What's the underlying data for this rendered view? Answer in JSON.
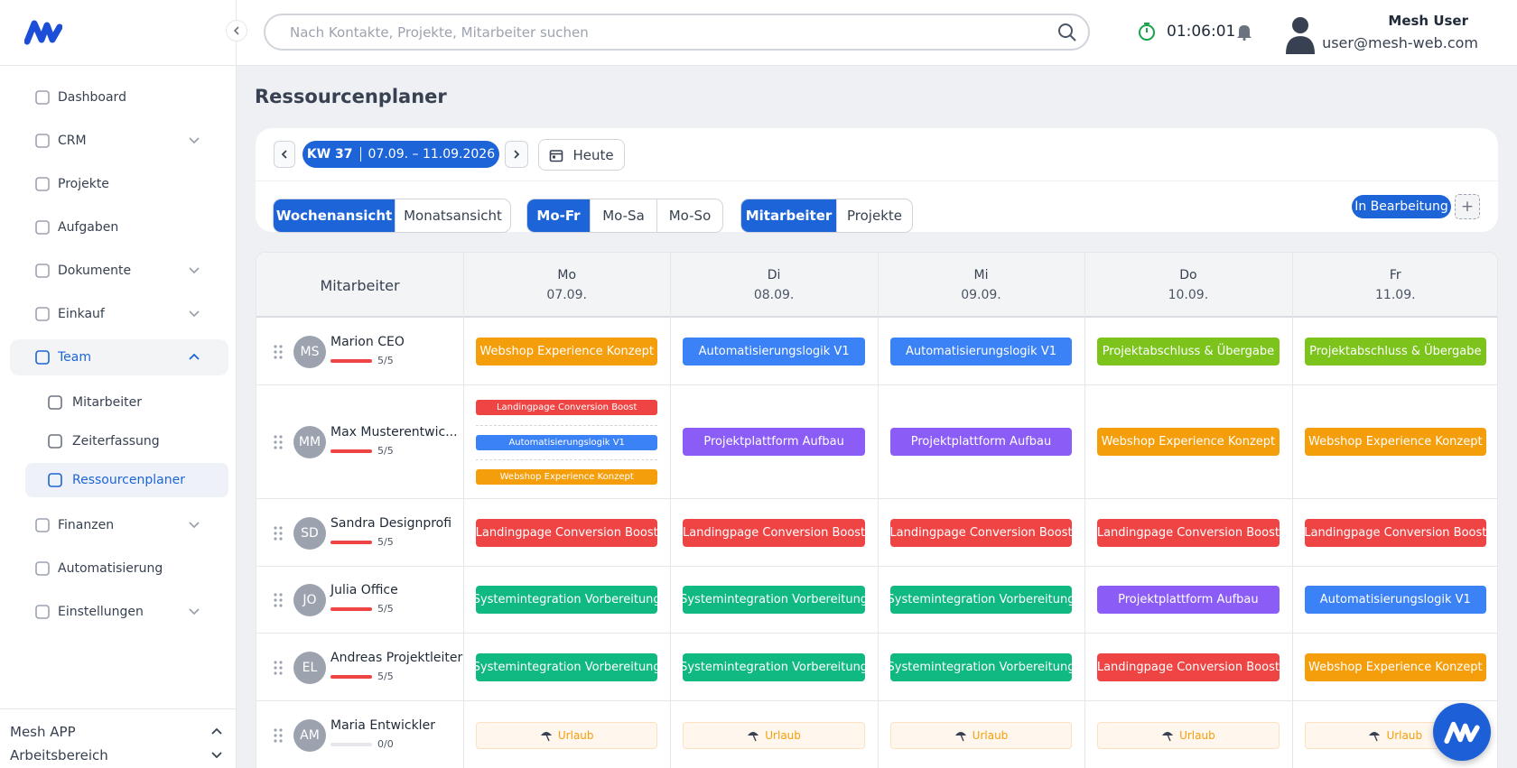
{
  "sidebar": {
    "items": [
      {
        "label": "Dashboard"
      },
      {
        "label": "CRM",
        "chevron": "down"
      },
      {
        "label": "Projekte"
      },
      {
        "label": "Aufgaben"
      },
      {
        "label": "Dokumente",
        "chevron": "down"
      },
      {
        "label": "Einkauf",
        "chevron": "down"
      },
      {
        "label": "Team",
        "chevron": "up",
        "open": true,
        "children": [
          {
            "label": "Mitarbeiter"
          },
          {
            "label": "Zeiterfassung"
          },
          {
            "label": "Ressourcenplaner",
            "active": true
          }
        ]
      },
      {
        "label": "Finanzen",
        "chevron": "down"
      },
      {
        "label": "Automatisierung"
      },
      {
        "label": "Einstellungen",
        "chevron": "down"
      }
    ],
    "footer": [
      {
        "label": "Mesh APP",
        "chevron": "up"
      },
      {
        "label": "Arbeitsbereich",
        "chevron": "down"
      }
    ]
  },
  "header": {
    "search_placeholder": "Nach Kontakte, Projekte, Mitarbeiter suchen",
    "timer": "01:06:01",
    "user_name": "Mesh User",
    "user_email": "user@mesh-web.com"
  },
  "page": {
    "title": "Ressourcenplaner",
    "week_label": "KW 37",
    "week_range": "07.09. – 11.09.2026",
    "today": "Heute",
    "toggles": [
      {
        "options": [
          "Wochenansicht",
          "Monatsansicht"
        ],
        "active": 0
      },
      {
        "options": [
          "Mo-Fr",
          "Mo-Sa",
          "Mo-So"
        ],
        "active": 0
      },
      {
        "options": [
          "Mitarbeiter",
          "Projekte"
        ],
        "active": 0
      }
    ],
    "status": "In Bearbeitung",
    "add": "+"
  },
  "table": {
    "corner": "Mitarbeiter",
    "days": [
      {
        "day": "Mo",
        "date": "07.09."
      },
      {
        "day": "Di",
        "date": "08.09."
      },
      {
        "day": "Mi",
        "date": "09.09."
      },
      {
        "day": "Do",
        "date": "10.09."
      },
      {
        "day": "Fr",
        "date": "11.09."
      }
    ],
    "rows": [
      {
        "initials": "MS",
        "name": "Marion CEO",
        "capacity": "5/5",
        "full": true,
        "cells": [
          [
            {
              "label": "Webshop Experience Konzept",
              "color": "#f59e0b"
            }
          ],
          [
            {
              "label": "Automatisierungslogik V1",
              "color": "#3b82f6"
            }
          ],
          [
            {
              "label": "Automatisierungslogik V1",
              "color": "#3b82f6"
            }
          ],
          [
            {
              "label": "Projektabschluss & Übergabe",
              "color": "#7cc41c"
            }
          ],
          [
            {
              "label": "Projektabschluss & Übergabe",
              "color": "#7cc41c"
            }
          ]
        ]
      },
      {
        "initials": "MM",
        "name": "Max Musterentwic...",
        "capacity": "5/5",
        "full": true,
        "cells": [
          [
            {
              "label": "Landingpage Conversion Boost",
              "color": "#ef4444"
            },
            {
              "label": "Automatisierungslogik V1",
              "color": "#3b82f6"
            },
            {
              "label": "Webshop Experience Konzept",
              "color": "#f59e0b"
            }
          ],
          [
            {
              "label": "Projektplattform Aufbau",
              "color": "#8b5cf6"
            }
          ],
          [
            {
              "label": "Projektplattform Aufbau",
              "color": "#8b5cf6"
            }
          ],
          [
            {
              "label": "Webshop Experience Konzept",
              "color": "#f59e0b"
            }
          ],
          [
            {
              "label": "Webshop Experience Konzept",
              "color": "#f59e0b"
            }
          ]
        ]
      },
      {
        "initials": "SD",
        "name": "Sandra Designprofi",
        "capacity": "5/5",
        "full": true,
        "cells": [
          [
            {
              "label": "Landingpage Conversion Boost",
              "color": "#ef4444"
            }
          ],
          [
            {
              "label": "Landingpage Conversion Boost",
              "color": "#ef4444"
            }
          ],
          [
            {
              "label": "Landingpage Conversion Boost",
              "color": "#ef4444"
            }
          ],
          [
            {
              "label": "Landingpage Conversion Boost",
              "color": "#ef4444"
            }
          ],
          [
            {
              "label": "Landingpage Conversion Boost",
              "color": "#ef4444"
            }
          ]
        ]
      },
      {
        "initials": "JO",
        "name": "Julia Office",
        "capacity": "5/5",
        "full": true,
        "cells": [
          [
            {
              "label": "Systemintegration Vorbereitung",
              "color": "#10b981"
            }
          ],
          [
            {
              "label": "Systemintegration Vorbereitung",
              "color": "#10b981"
            }
          ],
          [
            {
              "label": "Systemintegration Vorbereitung",
              "color": "#10b981"
            }
          ],
          [
            {
              "label": "Projektplattform Aufbau",
              "color": "#8b5cf6"
            }
          ],
          [
            {
              "label": "Automatisierungslogik V1",
              "color": "#3b82f6"
            }
          ]
        ]
      },
      {
        "initials": "EL",
        "name": "Andreas Projektleiter",
        "capacity": "5/5",
        "full": true,
        "cells": [
          [
            {
              "label": "Systemintegration Vorbereitung",
              "color": "#10b981"
            }
          ],
          [
            {
              "label": "Systemintegration Vorbereitung",
              "color": "#10b981"
            }
          ],
          [
            {
              "label": "Systemintegration Vorbereitung",
              "color": "#10b981"
            }
          ],
          [
            {
              "label": "Landingpage Conversion Boost",
              "color": "#ef4444"
            }
          ],
          [
            {
              "label": "Webshop Experience Konzept",
              "color": "#f59e0b"
            }
          ]
        ]
      },
      {
        "initials": "AM",
        "name": "Maria Entwickler",
        "capacity": "0/0",
        "full": false,
        "cells": [
          [
            {
              "label": "Urlaub",
              "vacation": true
            }
          ],
          [
            {
              "label": "Urlaub",
              "vacation": true
            }
          ],
          [
            {
              "label": "Urlaub",
              "vacation": true
            }
          ],
          [
            {
              "label": "Urlaub",
              "vacation": true
            }
          ],
          [
            {
              "label": "Urlaub",
              "vacation": true
            }
          ]
        ]
      }
    ]
  }
}
